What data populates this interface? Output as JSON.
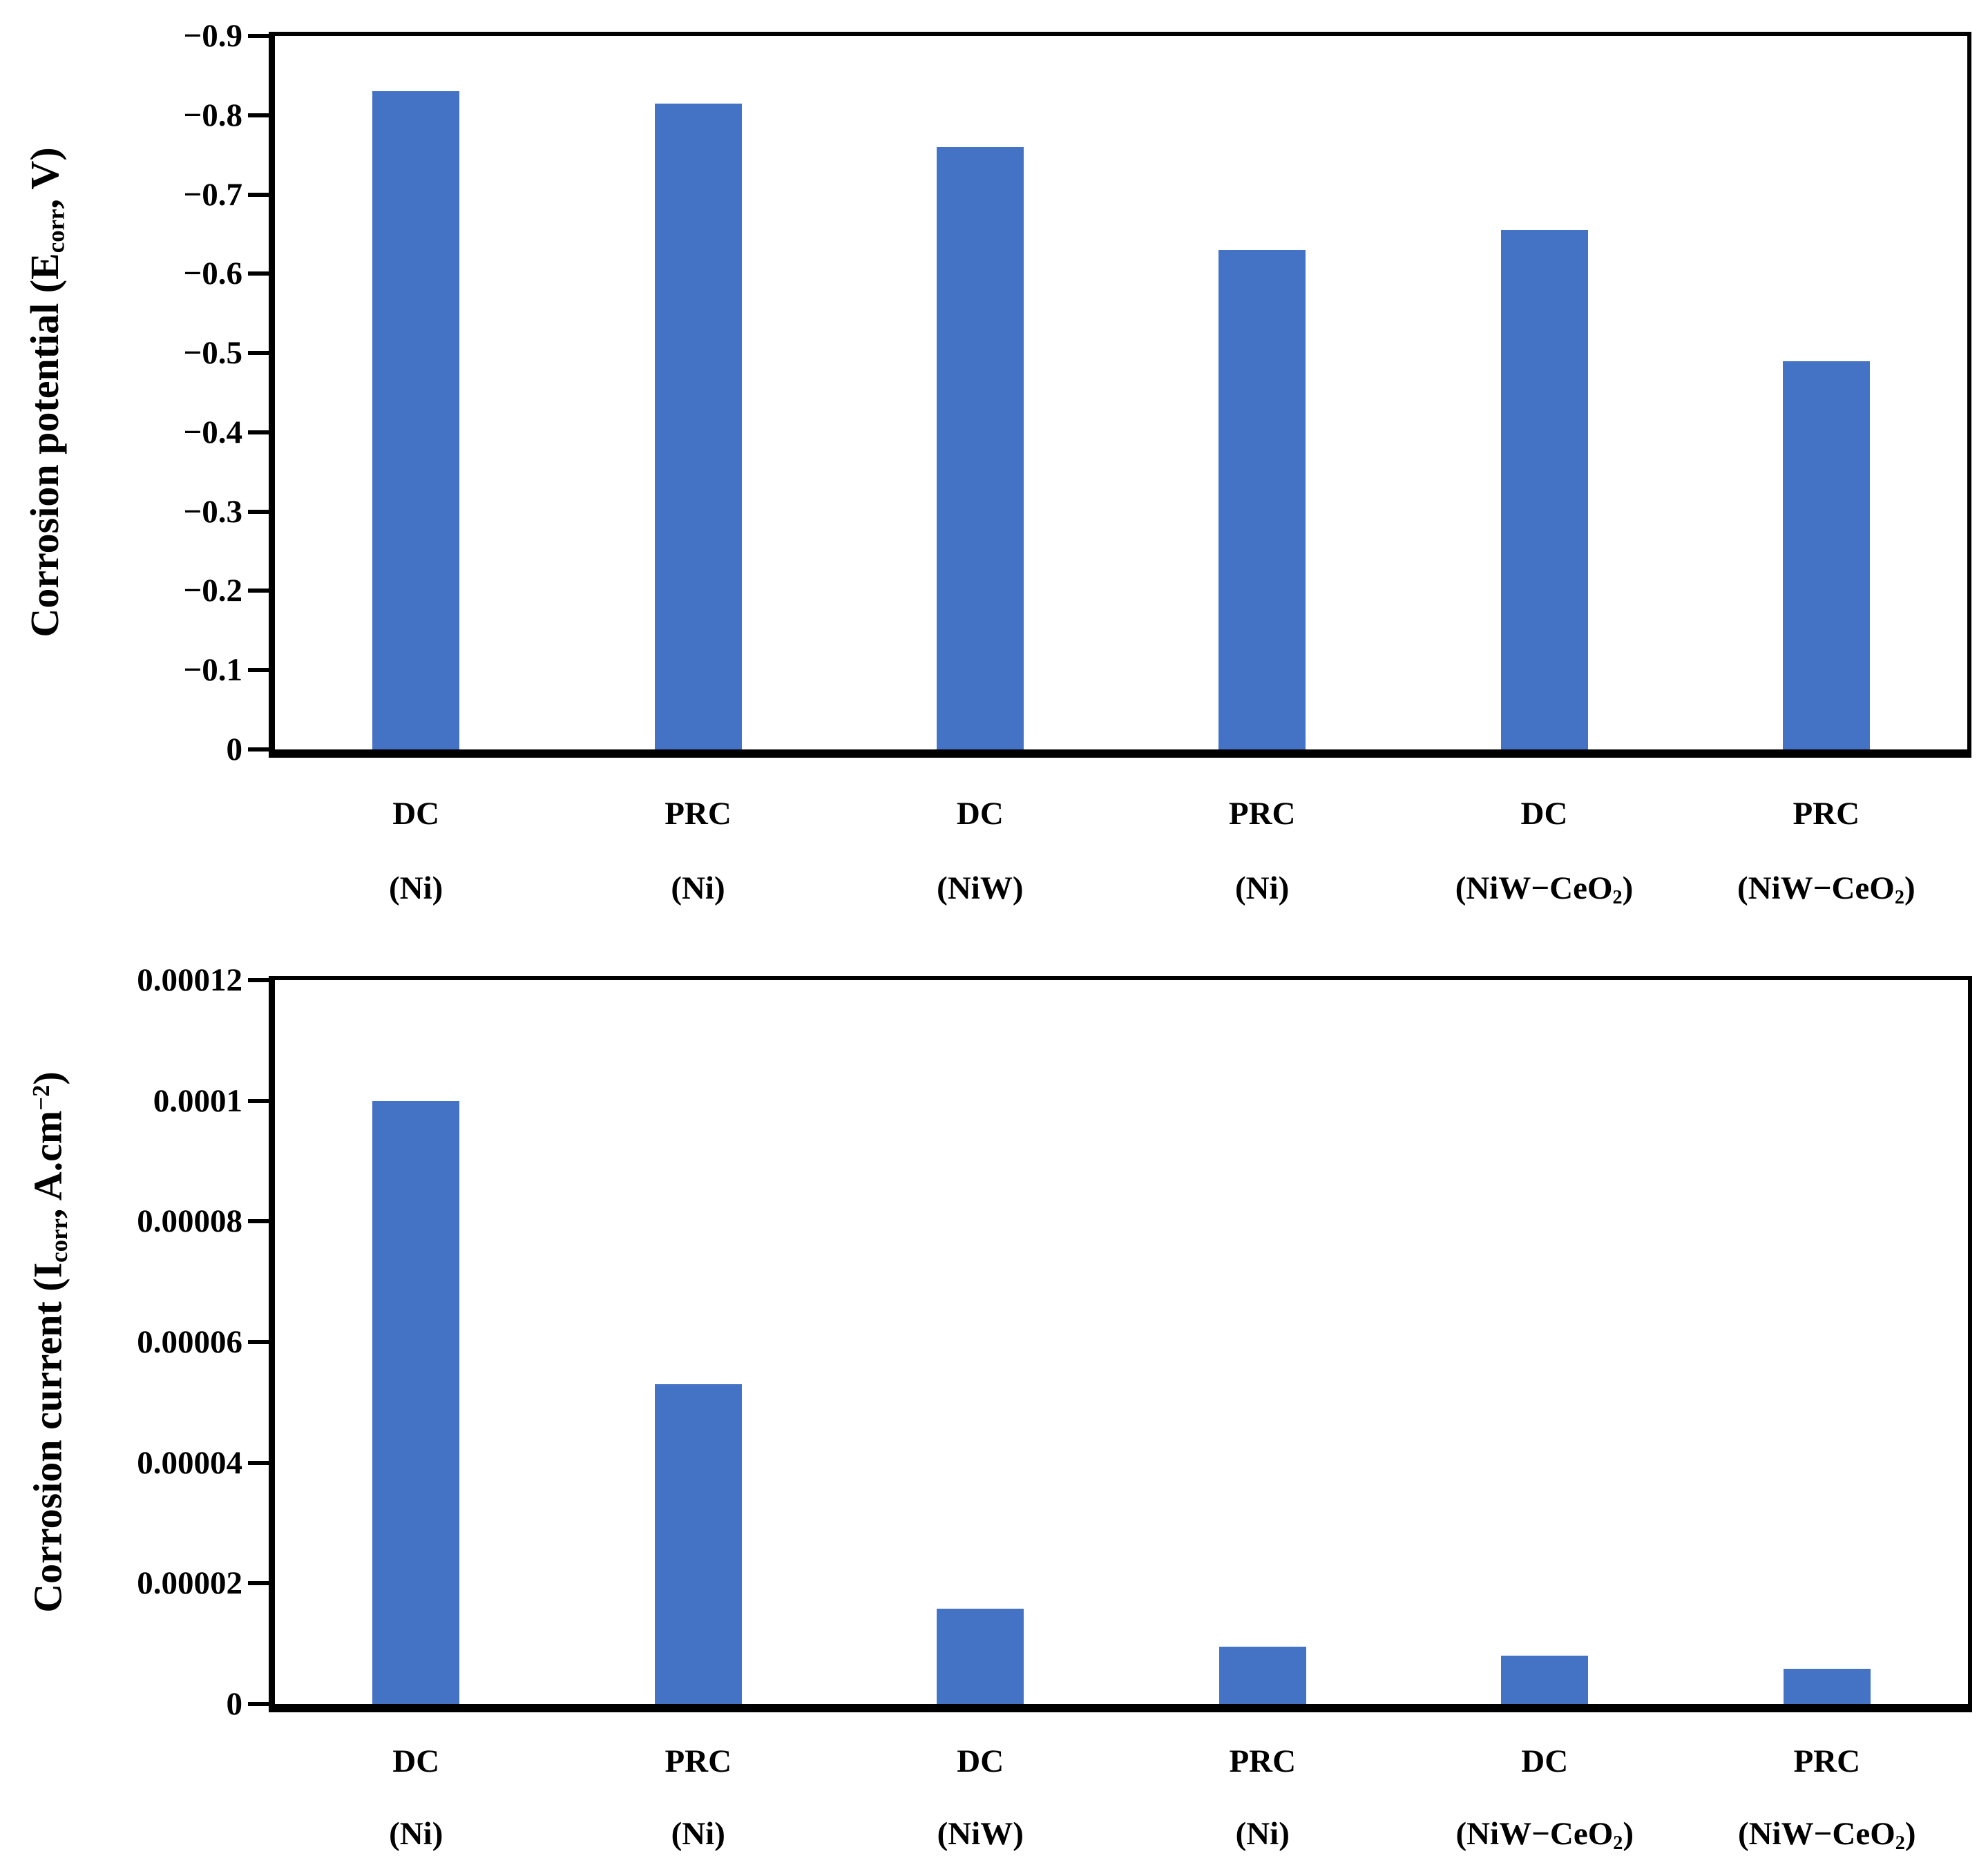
{
  "figure": {
    "background": "#ffffff",
    "bar_color": "#4472C4",
    "axis_color": "#000000",
    "text_color": "#000000"
  },
  "chart_data": [
    {
      "type": "bar",
      "name": "corrosion-potential",
      "title": "",
      "ylabel": "Corrosion potential (Ecorr, V)",
      "ylabel_parts": [
        {
          "t": "Corrosion potential (E"
        },
        {
          "t": "corr",
          "sub": true
        },
        {
          "t": ", V)"
        }
      ],
      "xlabel": "",
      "categories": [
        "DC (Ni)",
        "PRC (Ni)",
        "DC (NiW)",
        "PRC (Ni)",
        "DC (NiW−CeO2)",
        "PRC (NiW−CeO2)"
      ],
      "category_labels": [
        {
          "line1": "DC",
          "line2_parts": [
            {
              "t": "(Ni)"
            }
          ]
        },
        {
          "line1": "PRC",
          "line2_parts": [
            {
              "t": "(Ni)"
            }
          ]
        },
        {
          "line1": "DC",
          "line2_parts": [
            {
              "t": "(NiW)"
            }
          ]
        },
        {
          "line1": "PRC",
          "line2_parts": [
            {
              "t": "(Ni)"
            }
          ]
        },
        {
          "line1": "DC",
          "line2_parts": [
            {
              "t": "(NiW−CeO"
            },
            {
              "t": "2",
              "sub": true
            },
            {
              "t": ")"
            }
          ]
        },
        {
          "line1": "PRC",
          "line2_parts": [
            {
              "t": "(NiW−CeO"
            },
            {
              "t": "2",
              "sub": true
            },
            {
              "t": ")"
            }
          ]
        }
      ],
      "values": [
        -0.83,
        -0.815,
        -0.76,
        -0.63,
        -0.655,
        -0.49
      ],
      "ylim": [
        0,
        -0.9
      ],
      "y_axis_note": "axis reversed: -0.9 at top, 0 at bottom; bars anchored at 0 baseline",
      "yticks": [
        "−0.9",
        "−0.8",
        "−0.7",
        "−0.6",
        "−0.5",
        "−0.4",
        "−0.3",
        "−0.2",
        "−0.1",
        "0"
      ],
      "grid": false,
      "legend": false
    },
    {
      "type": "bar",
      "name": "corrosion-current",
      "title": "",
      "ylabel": "Corrosion current (Icorr, A.cm−2)",
      "ylabel_parts": [
        {
          "t": "Corrosion current (I"
        },
        {
          "t": "corr",
          "sub": true
        },
        {
          "t": ", A.cm"
        },
        {
          "t": "−2",
          "sup": true
        },
        {
          "t": ")"
        }
      ],
      "xlabel": "",
      "categories": [
        "DC (Ni)",
        "PRC (Ni)",
        "DC (NiW)",
        "PRC (Ni)",
        "DC (NiW−CeO2)",
        "PRC (NiW−CeO2)"
      ],
      "category_labels": [
        {
          "line1": "DC",
          "line2_parts": [
            {
              "t": "(Ni)"
            }
          ]
        },
        {
          "line1": "PRC",
          "line2_parts": [
            {
              "t": "(Ni)"
            }
          ]
        },
        {
          "line1": "DC",
          "line2_parts": [
            {
              "t": "(NiW)"
            }
          ]
        },
        {
          "line1": "PRC",
          "line2_parts": [
            {
              "t": "(Ni)"
            }
          ]
        },
        {
          "line1": "DC",
          "line2_parts": [
            {
              "t": "(NiW−CeO"
            },
            {
              "t": "2",
              "sub": true
            },
            {
              "t": ")"
            }
          ]
        },
        {
          "line1": "PRC",
          "line2_parts": [
            {
              "t": "(NiW−CeO"
            },
            {
              "t": "2",
              "sub": true
            },
            {
              "t": ")"
            }
          ]
        }
      ],
      "values": [
        0.0001,
        5.3e-05,
        1.58e-05,
        9.5e-06,
        8e-06,
        5.8e-06
      ],
      "ylim": [
        0,
        0.00012
      ],
      "yticks": [
        "0.00012",
        "0.0001",
        "0.00008",
        "0.00006",
        "0.00004",
        "0.00002",
        "0"
      ],
      "grid": false,
      "legend": false
    }
  ]
}
